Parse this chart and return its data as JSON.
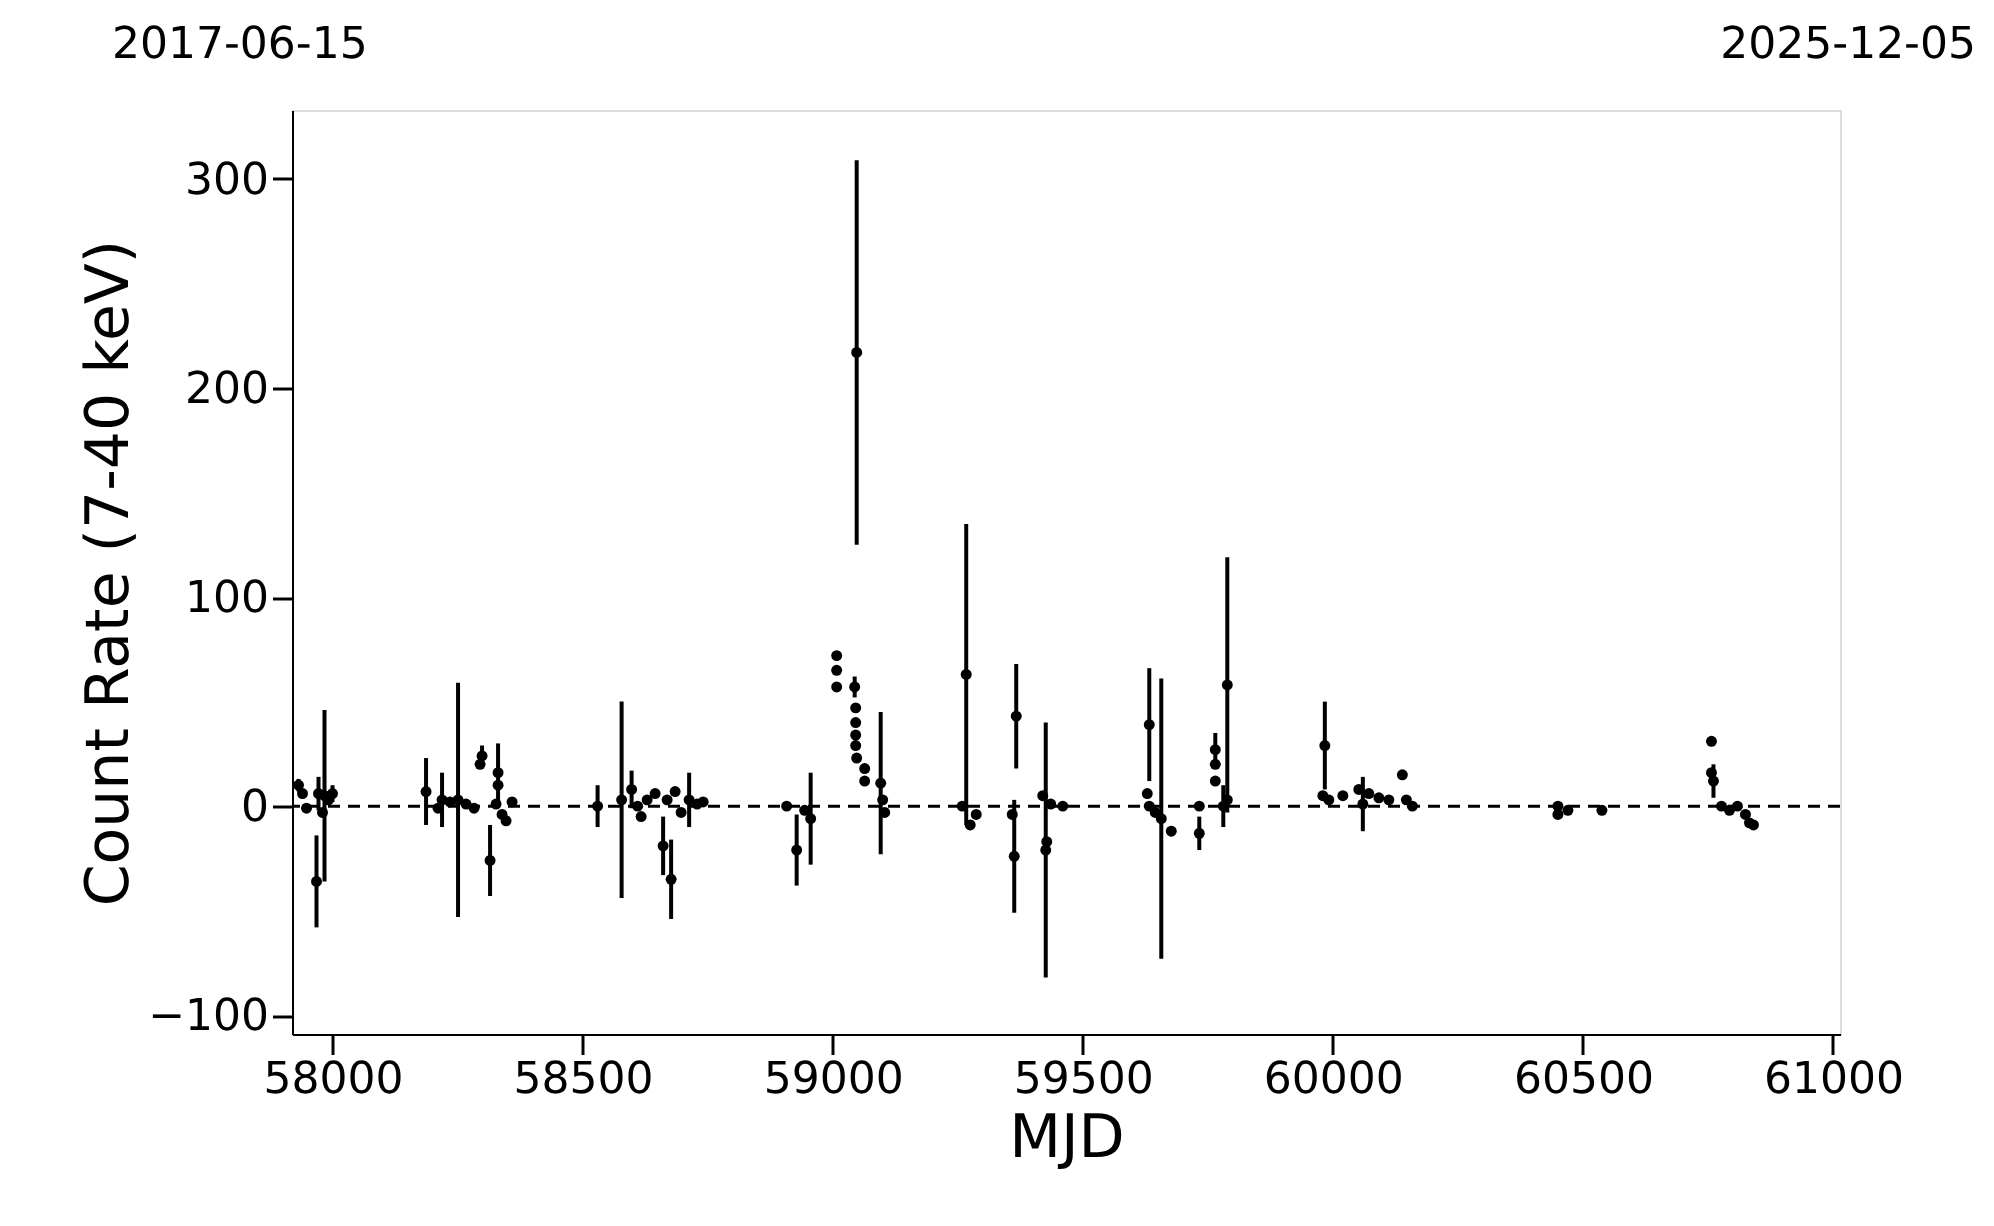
{
  "chart_data": {
    "type": "scatter",
    "xlabel": "MJD",
    "ylabel": "Count Rate (7-40 keV)",
    "annotations": [
      "2017-06-15",
      "2025-12-05"
    ],
    "xlim": [
      57919,
      61014
    ],
    "xticks": [
      58000,
      58500,
      59000,
      59500,
      60000,
      60500,
      61000
    ],
    "ylim": [
      -109,
      333
    ],
    "yticks": [
      -100,
      0,
      100,
      200,
      300
    ],
    "grid": false,
    "marker": "circle",
    "ref_lines": [
      {
        "axis": "y",
        "value": 0,
        "label": null,
        "color": "#000000",
        "line_style": "dashed"
      }
    ],
    "series": [
      {
        "color": "#000000",
        "x": [
          57932,
          57940,
          57948,
          57968,
          57972,
          57984,
          57992,
          58000,
          57980,
          58187,
          58211,
          58219,
          58235,
          58251,
          58267,
          58283,
          58295,
          58299,
          58315,
          58327,
          58331,
          58331,
          58339,
          58347,
          58359,
          58530,
          58578,
          58598,
          58610,
          58617,
          58629,
          58645,
          58661,
          58669,
          58677,
          58685,
          58697,
          58713,
          58729,
          58741,
          58908,
          58928,
          58944,
          58956,
          59008,
          59008,
          59008,
          59044,
          59046,
          59046,
          59046,
          59046,
          59048,
          59064,
          59064,
          59048,
          59096,
          59100,
          59104,
          59267,
          59259,
          59275,
          59287,
          59367,
          59363,
          59359,
          59426,
          59428,
          59420,
          59436,
          59460,
          59633,
          59633,
          59629,
          59657,
          59677,
          59645,
          59733,
          59733,
          59765,
          59765,
          59765,
          59789,
          59781,
          59789,
          59984,
          59980,
          59992,
          60020,
          60052,
          60060,
          60072,
          60092,
          60112,
          60139,
          60147,
          60159,
          60450,
          60450,
          60470,
          60538,
          60757,
          60757,
          60761,
          60777,
          60793,
          60809,
          60825,
          60833,
          60841
        ],
        "values": [
          10,
          6,
          -1,
          -36,
          6,
          5,
          3,
          6,
          -3,
          7,
          -1,
          3,
          2,
          3,
          1,
          -1,
          20,
          24,
          -26,
          1,
          16,
          10,
          -4,
          -7,
          2,
          0,
          3,
          8,
          0,
          -5,
          3,
          6,
          -19,
          3,
          -35,
          7,
          -3,
          3,
          1,
          2,
          0,
          -21,
          -2,
          -6,
          72,
          65,
          57,
          57,
          47,
          40,
          34,
          29,
          23,
          18,
          12,
          217,
          11,
          3,
          -3,
          63,
          0,
          -9,
          -4,
          43,
          -24,
          -4,
          -21,
          -17,
          5,
          1,
          0,
          39,
          0,
          6,
          -6,
          -12,
          -3,
          0,
          -13,
          27,
          20,
          12,
          58,
          0,
          3,
          29,
          5,
          3,
          5,
          8,
          1,
          6,
          4,
          3,
          15,
          3,
          0,
          0,
          -4,
          -2,
          -2,
          31,
          16,
          12,
          0,
          -2,
          0,
          -4,
          -8,
          -9
        ],
        "errors": [
          3,
          null,
          null,
          22,
          8,
          41,
          null,
          4,
          null,
          16,
          null,
          13,
          null,
          56,
          null,
          null,
          null,
          5,
          17,
          null,
          14,
          null,
          null,
          null,
          null,
          10,
          47,
          9,
          null,
          null,
          null,
          null,
          14,
          null,
          19,
          null,
          null,
          13,
          null,
          null,
          null,
          17,
          null,
          22,
          null,
          null,
          null,
          5,
          null,
          null,
          null,
          null,
          null,
          null,
          null,
          92,
          34,
          null,
          null,
          72,
          null,
          null,
          null,
          25,
          27,
          null,
          61,
          null,
          null,
          null,
          null,
          27,
          null,
          null,
          67,
          null,
          null,
          null,
          8,
          8,
          null,
          null,
          61,
          10,
          null,
          21,
          null,
          null,
          null,
          null,
          13,
          null,
          null,
          null,
          null,
          null,
          null,
          null,
          null,
          null,
          null,
          null,
          null,
          8,
          null,
          null,
          null,
          null,
          null,
          null
        ]
      }
    ]
  }
}
